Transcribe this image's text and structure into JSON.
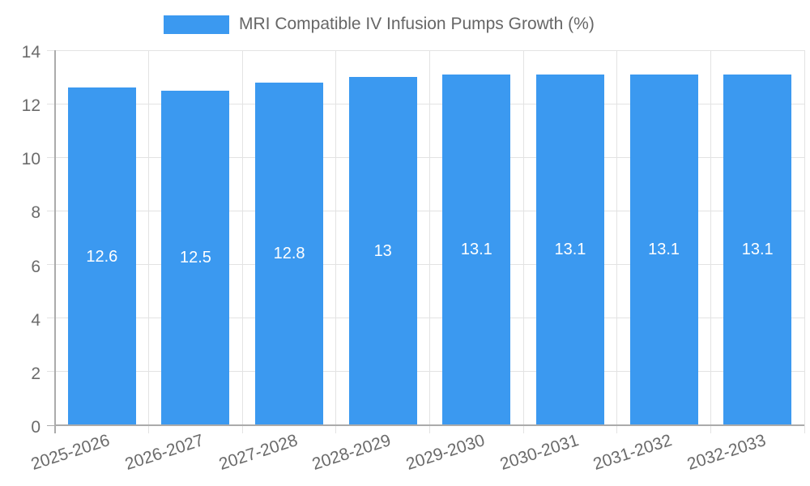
{
  "legend": {
    "swatch_color": "#3b99f0"
  },
  "chart_data": {
    "type": "bar",
    "title": "MRI Compatible IV Infusion Pumps Growth (%)",
    "xlabel": "",
    "ylabel": "",
    "categories": [
      "2025-2026",
      "2026-2027",
      "2027-2028",
      "2028-2029",
      "2029-2030",
      "2030-2031",
      "2031-2032",
      "2032-2033"
    ],
    "values": [
      12.6,
      12.5,
      12.8,
      13,
      13.1,
      13.1,
      13.1,
      13.1
    ],
    "value_labels": [
      "12.6",
      "12.5",
      "12.8",
      "13",
      "13.1",
      "13.1",
      "13.1",
      "13.1"
    ],
    "ylim": [
      0,
      14
    ],
    "yticks": [
      0,
      2,
      4,
      6,
      8,
      10,
      12,
      14
    ],
    "grid": true,
    "legend_position": "top",
    "bar_color": "#3b99f0",
    "value_label_color": "#ffffff",
    "tick_label_color": "#6b6b6b",
    "grid_color": "#e3e3e3",
    "axis_color": "#ababab",
    "x_tick_rotation_deg": -18
  }
}
